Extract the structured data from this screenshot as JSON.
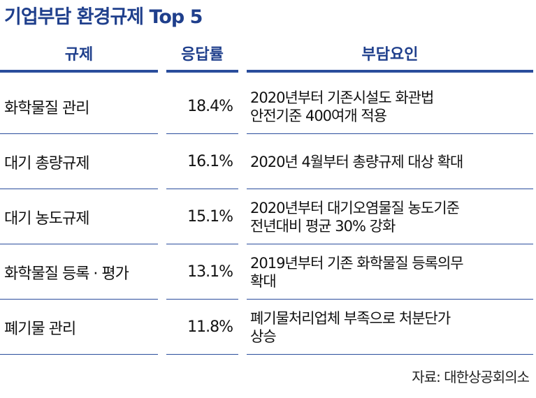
{
  "title": "기업부담 환경규제 Top 5",
  "headers": {
    "regulation": "규제",
    "response_rate": "응답률",
    "burden_factor": "부담요인"
  },
  "rows": [
    {
      "regulation": "화학물질 관리",
      "rate": "18.4%",
      "factor": "2020년부터 기존시설도 화관법\n안전기준 400여개 적용"
    },
    {
      "regulation": "대기 총량규제",
      "rate": "16.1%",
      "factor": "2020년 4월부터 총량규제 대상 확대"
    },
    {
      "regulation": "대기 농도규제",
      "rate": "15.1%",
      "factor": "2020년부터 대기오염물질 농도기준\n전년대비 평균 30% 강화"
    },
    {
      "regulation": "화학물질 등록 · 평가",
      "rate": "13.1%",
      "factor": "2019년부터 기존 화학물질 등록의무\n확대"
    },
    {
      "regulation": "폐기물 관리",
      "rate": "11.8%",
      "factor": "폐기물처리업체 부족으로 처분단가\n상승"
    }
  ],
  "source": "자료: 대한상공회의소",
  "colors": {
    "accent": "#1f3f8c",
    "rule": "#2a4d9c"
  }
}
